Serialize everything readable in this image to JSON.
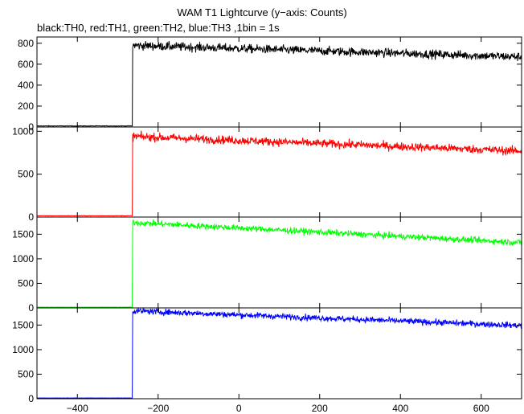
{
  "chart_data": {
    "type": "line",
    "title": "WAM T1 Lightcurve (y−axis: Counts)",
    "subtitle": "black:TH0, red:TH1, green:TH2, blue:TH3 ,1bin = 1s",
    "xlabel": "",
    "ylabel": "",
    "xlim": [
      -500,
      700
    ],
    "x_ticks": [
      -400,
      -200,
      0,
      200,
      400,
      600
    ],
    "x_tick_labels": [
      "−400",
      "−200",
      "0",
      "200",
      "400",
      "600"
    ],
    "trigger_x": -263,
    "grid": false,
    "panels": [
      {
        "name": "TH0",
        "color": "#000000",
        "ylim": [
          0,
          860
        ],
        "y_ticks": [
          0,
          200,
          400,
          600,
          800
        ],
        "pre_level": 10,
        "post_start": 780,
        "post_end": 670,
        "noise": 30
      },
      {
        "name": "TH1",
        "color": "#ff0000",
        "ylim": [
          0,
          1050
        ],
        "y_ticks": [
          0,
          500,
          1000
        ],
        "pre_level": 15,
        "post_start": 940,
        "post_end": 770,
        "noise": 35
      },
      {
        "name": "TH2",
        "color": "#00ff00",
        "ylim": [
          0,
          1850
        ],
        "y_ticks": [
          0,
          500,
          1000,
          1500
        ],
        "pre_level": 15,
        "post_start": 1740,
        "post_end": 1330,
        "noise": 45
      },
      {
        "name": "TH3",
        "color": "#0000ff",
        "ylim": [
          0,
          1850
        ],
        "y_ticks": [
          0,
          500,
          1000,
          1500
        ],
        "pre_level": 15,
        "post_start": 1790,
        "post_end": 1490,
        "noise": 45
      }
    ]
  }
}
